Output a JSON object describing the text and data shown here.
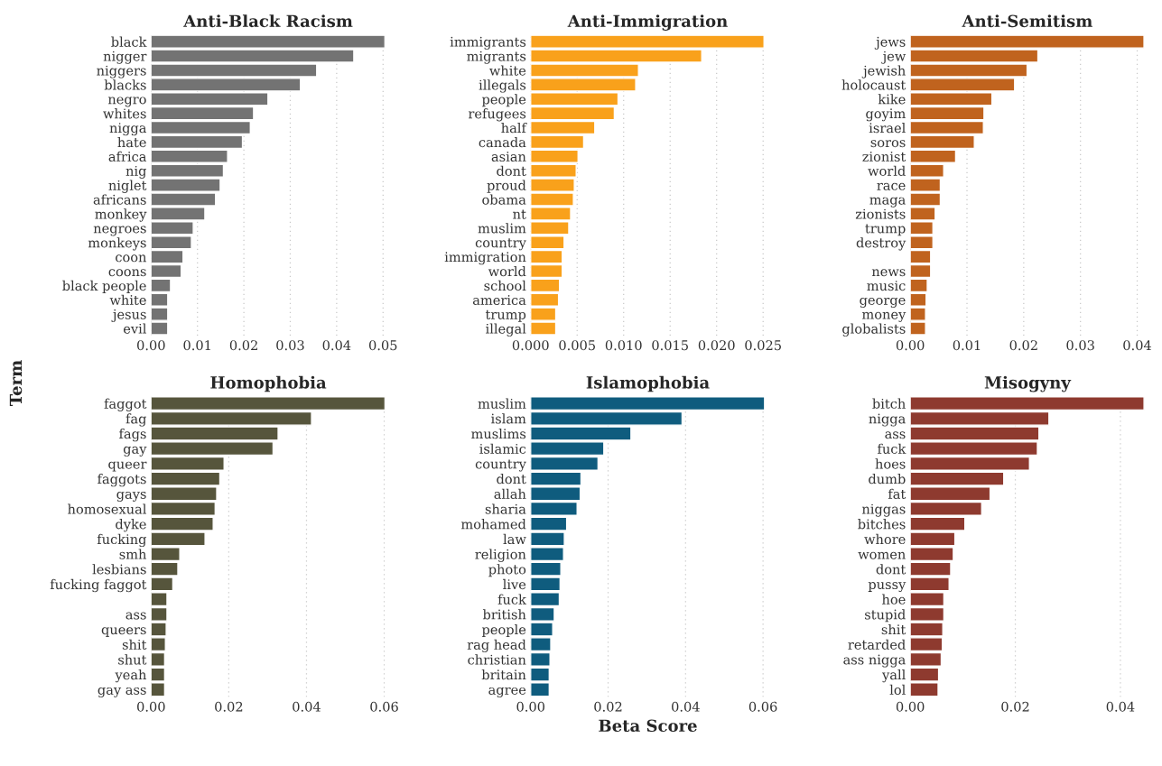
{
  "chart_data": [
    {
      "type": "bar",
      "orientation": "horizontal",
      "title": "Anti-Black Racism",
      "ylabel": "Term",
      "grid": "x",
      "categories": [
        "black",
        "nigger",
        "niggers",
        "blacks",
        "negro",
        "whites",
        "nigga",
        "hate",
        "africa",
        "nig",
        "niglet",
        "africans",
        "monkey",
        "negroes",
        "monkeys",
        "coon",
        "coons",
        "black people",
        "white",
        "jesus",
        "evil"
      ],
      "series": [
        {
          "color": "#737373",
          "values": [
            0.0504,
            0.0437,
            0.0357,
            0.0322,
            0.0252,
            0.0221,
            0.0214,
            0.0197,
            0.0165,
            0.0156,
            0.0149,
            0.0139,
            0.0116,
            0.0091,
            0.0087,
            0.0069,
            0.0065,
            0.0042,
            0.0036,
            0.0036,
            0.0036
          ]
        }
      ],
      "xlim": [
        0,
        0.0505
      ],
      "xticks": [
        {
          "value": 0,
          "label": "0.00"
        },
        {
          "value": 0.01,
          "label": "0.01"
        },
        {
          "value": 0.02,
          "label": "0.02"
        },
        {
          "value": 0.03,
          "label": "0.03"
        },
        {
          "value": 0.04,
          "label": "0.04"
        },
        {
          "value": 0.05,
          "label": "0.05"
        }
      ]
    },
    {
      "type": "bar",
      "orientation": "horizontal",
      "title": "Anti-Immigration",
      "grid": "x",
      "categories": [
        "immigrants",
        "migrants",
        "white",
        "illegals",
        "people",
        "refugees",
        "half",
        "canada",
        "asian",
        "dont",
        "proud",
        "obama",
        "nt",
        "muslim",
        "country",
        "immigration",
        "world",
        "school",
        "america",
        "trump",
        "illegal"
      ],
      "series": [
        {
          "color": "#f9a11b",
          "values": [
            0.0251,
            0.0184,
            0.0116,
            0.0113,
            0.0094,
            0.009,
            0.0069,
            0.0057,
            0.0051,
            0.0049,
            0.0047,
            0.0046,
            0.0043,
            0.0041,
            0.0036,
            0.0034,
            0.0034,
            0.0031,
            0.003,
            0.0027,
            0.0027
          ]
        }
      ],
      "xlim": [
        0,
        0.0252
      ],
      "xticks": [
        {
          "value": 0,
          "label": "0.000"
        },
        {
          "value": 0.005,
          "label": "0.005"
        },
        {
          "value": 0.01,
          "label": "0.010"
        },
        {
          "value": 0.015,
          "label": "0.015"
        },
        {
          "value": 0.02,
          "label": "0.020"
        },
        {
          "value": 0.025,
          "label": "0.025"
        }
      ]
    },
    {
      "type": "bar",
      "orientation": "horizontal",
      "title": "Anti-Semitism",
      "grid": "x",
      "categories": [
        "jews",
        "jew",
        "jewish",
        "holocaust",
        "kike",
        "goyim",
        "israel",
        "soros",
        "zionist",
        "world",
        "race",
        "maga",
        "zionists",
        "trump",
        "destroy",
        null,
        "news",
        "music",
        "george",
        "money",
        "globalists"
      ],
      "series": [
        {
          "color": "#c0631e",
          "values": [
            0.0412,
            0.0225,
            0.0206,
            0.0184,
            0.0144,
            0.013,
            0.0129,
            0.0113,
            0.008,
            0.0059,
            0.0053,
            0.0053,
            0.0044,
            0.004,
            0.004,
            0.0036,
            0.0036,
            0.003,
            0.0028,
            0.0027,
            0.0027
          ]
        }
      ],
      "xlim": [
        0,
        0.0413
      ],
      "xticks": [
        {
          "value": 0,
          "label": "0.00"
        },
        {
          "value": 0.01,
          "label": "0.01"
        },
        {
          "value": 0.02,
          "label": "0.02"
        },
        {
          "value": 0.03,
          "label": "0.03"
        },
        {
          "value": 0.04,
          "label": "0.04"
        }
      ]
    },
    {
      "type": "bar",
      "orientation": "horizontal",
      "title": "Homophobia",
      "grid": "x",
      "categories": [
        "faggot",
        "fag",
        "fags",
        "gay",
        "queer",
        "faggots",
        "gays",
        "homosexual",
        "dyke",
        "fucking",
        "smh",
        "lesbians",
        "fucking faggot",
        null,
        "ass",
        "queers",
        "shit",
        "shut",
        "yeah",
        "gay ass"
      ],
      "series": [
        {
          "color": "#56553c",
          "values": [
            0.0602,
            0.0413,
            0.0327,
            0.0314,
            0.0188,
            0.0177,
            0.0169,
            0.0165,
            0.016,
            0.0139,
            0.0074,
            0.0069,
            0.0056,
            0.0041,
            0.0041,
            0.0039,
            0.0037,
            0.0035,
            0.0035,
            0.0035
          ]
        }
      ],
      "xlim": [
        0,
        0.0603
      ],
      "xticks": [
        {
          "value": 0,
          "label": "0.00"
        },
        {
          "value": 0.02,
          "label": "0.02"
        },
        {
          "value": 0.04,
          "label": "0.04"
        },
        {
          "value": 0.06,
          "label": "0.06"
        }
      ]
    },
    {
      "type": "bar",
      "orientation": "horizontal",
      "title": "Islamophobia",
      "xlabel": "Beta Score",
      "grid": "x",
      "categories": [
        "muslim",
        "islam",
        "muslims",
        "islamic",
        "country",
        "dont",
        "allah",
        "sharia",
        "mohamed",
        "law",
        "religion",
        "photo",
        "live",
        "fuck",
        "british",
        "people",
        "rag head",
        "christian",
        "britain",
        "agree"
      ],
      "series": [
        {
          "color": "#0f5c7e",
          "values": [
            0.0604,
            0.0391,
            0.0259,
            0.0189,
            0.0174,
            0.013,
            0.0128,
            0.012,
            0.0093,
            0.0087,
            0.0085,
            0.0078,
            0.0076,
            0.0074,
            0.0061,
            0.0057,
            0.0052,
            0.005,
            0.0048,
            0.0048
          ]
        }
      ],
      "xlim": [
        0,
        0.0605
      ],
      "xticks": [
        {
          "value": 0,
          "label": "0.00"
        },
        {
          "value": 0.02,
          "label": "0.02"
        },
        {
          "value": 0.04,
          "label": "0.04"
        },
        {
          "value": 0.06,
          "label": "0.06"
        }
      ]
    },
    {
      "type": "bar",
      "orientation": "horizontal",
      "title": "Misogyny",
      "grid": "x",
      "categories": [
        "bitch",
        "nigga",
        "ass",
        "fuck",
        "hoes",
        "dumb",
        "fat",
        "niggas",
        "bitches",
        "whore",
        "women",
        "dont",
        "pussy",
        "hoe",
        "stupid",
        "shit",
        "retarded",
        "ass nigga",
        "yall",
        "lol"
      ],
      "series": [
        {
          "color": "#8e3a2f",
          "values": [
            0.0445,
            0.0264,
            0.0245,
            0.0242,
            0.0227,
            0.0178,
            0.0152,
            0.0136,
            0.0104,
            0.0085,
            0.0082,
            0.0077,
            0.0074,
            0.0064,
            0.0064,
            0.0062,
            0.0061,
            0.0059,
            0.0054,
            0.0053
          ]
        }
      ],
      "xlim": [
        0,
        0.0446
      ],
      "xticks": [
        {
          "value": 0,
          "label": "0.00"
        },
        {
          "value": 0.02,
          "label": "0.02"
        },
        {
          "value": 0.04,
          "label": "0.04"
        }
      ]
    }
  ]
}
